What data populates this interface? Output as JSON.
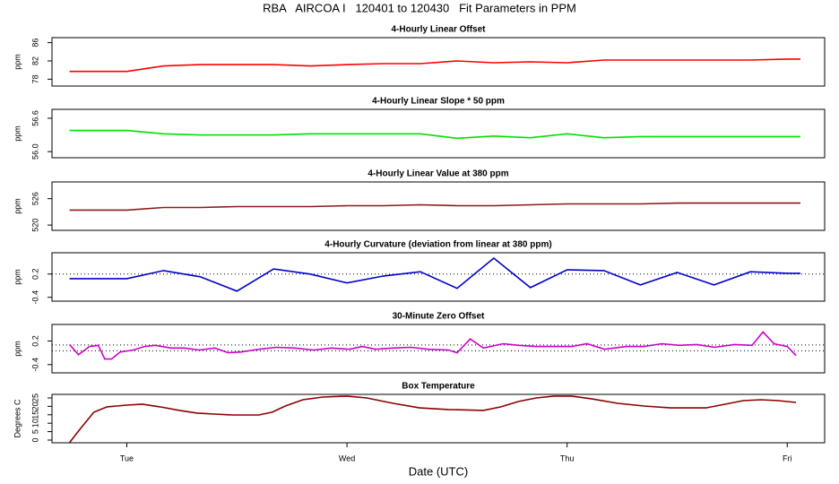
{
  "title": "RBA   AIRCOA I   120401 to 120430   Fit Parameters in PPM",
  "chart_data": [
    {
      "type": "line",
      "title": "4-Hourly Linear Offset",
      "ylabel": "ppm",
      "x": [
        0.74,
        1.0,
        1.167,
        1.333,
        1.5,
        1.667,
        1.833,
        2.0,
        2.167,
        2.333,
        2.5,
        2.667,
        2.833,
        3.0,
        3.167,
        3.333,
        3.5,
        3.667,
        3.833,
        4.0,
        4.06
      ],
      "series": [
        {
          "color": "#ff0000",
          "values": [
            79.7,
            79.7,
            80.9,
            81.2,
            81.2,
            81.2,
            80.9,
            81.2,
            81.4,
            81.4,
            82.0,
            81.6,
            81.8,
            81.6,
            82.2,
            82.2,
            82.2,
            82.2,
            82.2,
            82.4,
            82.4
          ]
        }
      ],
      "xlim": [
        0.66,
        4.17
      ],
      "ylim": [
        76.5,
        87.1
      ],
      "yticks": [
        78,
        82,
        86
      ]
    },
    {
      "type": "line",
      "title": "4-Hourly Linear Slope * 50 ppm",
      "ylabel": "ppm",
      "x": [
        0.74,
        1.0,
        1.167,
        1.333,
        1.5,
        1.667,
        1.833,
        2.0,
        2.167,
        2.333,
        2.5,
        2.667,
        2.833,
        3.0,
        3.167,
        3.333,
        3.5,
        3.667,
        3.833,
        4.0,
        4.06
      ],
      "series": [
        {
          "color": "#00e000",
          "values": [
            56.38,
            56.38,
            56.32,
            56.3,
            56.3,
            56.3,
            56.32,
            56.32,
            56.32,
            56.32,
            56.24,
            56.28,
            56.25,
            56.32,
            56.25,
            56.27,
            56.27,
            56.27,
            56.27,
            56.27,
            56.27
          ]
        }
      ],
      "xlim": [
        0.66,
        4.17
      ],
      "ylim": [
        55.89,
        56.76
      ],
      "yticks": [
        {
          "value": 56,
          "label": "56.0"
        },
        56.6
      ]
    },
    {
      "type": "line",
      "title": "4-Hourly Linear Value at 380 ppm",
      "ylabel": "ppm",
      "x": [
        0.74,
        1.0,
        1.167,
        1.333,
        1.5,
        1.667,
        1.833,
        2.0,
        2.167,
        2.333,
        2.5,
        2.667,
        2.833,
        3.0,
        3.167,
        3.333,
        3.5,
        3.667,
        3.833,
        4.0,
        4.06
      ],
      "series": [
        {
          "color": "#8b1a1a",
          "values": [
            523.4,
            523.4,
            524.0,
            524.0,
            524.2,
            524.2,
            524.2,
            524.4,
            524.4,
            524.6,
            524.4,
            524.4,
            524.6,
            524.8,
            524.8,
            524.8,
            525.0,
            525.0,
            525.0,
            525.0,
            525.0
          ]
        }
      ],
      "xlim": [
        0.66,
        4.17
      ],
      "ylim": [
        518.8,
        529.8
      ],
      "yticks": [
        520,
        526
      ]
    },
    {
      "type": "line",
      "title": "4-Hourly Curvature (deviation from linear at 380 ppm)",
      "ylabel": "ppm",
      "x": [
        0.74,
        1.0,
        1.167,
        1.333,
        1.5,
        1.667,
        1.833,
        2.0,
        2.167,
        2.333,
        2.5,
        2.667,
        2.833,
        3.0,
        3.167,
        3.333,
        3.5,
        3.667,
        3.833,
        4.0,
        4.06
      ],
      "series": [
        {
          "color": "#0000cc",
          "values": [
            0.08,
            0.08,
            0.29,
            0.13,
            -0.24,
            0.33,
            0.2,
            -0.03,
            0.15,
            0.26,
            -0.17,
            0.61,
            -0.15,
            0.31,
            0.29,
            -0.08,
            0.24,
            -0.08,
            0.26,
            0.22,
            0.22
          ]
        }
      ],
      "xlim": [
        0.66,
        4.17
      ],
      "ylim": [
        -0.5,
        0.75
      ],
      "yticks": [
        -0.4,
        0.2
      ],
      "hlines": [
        0.2
      ]
    },
    {
      "type": "line",
      "title": "30-Minute Zero Offset",
      "ylabel": "ppm",
      "x": [
        0.74,
        0.78,
        0.83,
        0.87,
        0.9,
        0.93,
        0.97,
        1.03,
        1.08,
        1.13,
        1.2,
        1.26,
        1.33,
        1.4,
        1.46,
        1.52,
        1.6,
        1.68,
        1.76,
        1.85,
        1.93,
        2.01,
        2.07,
        2.13,
        2.21,
        2.29,
        2.37,
        2.46,
        2.5,
        2.56,
        2.62,
        2.71,
        2.78,
        2.86,
        2.94,
        3.02,
        3.09,
        3.17,
        3.27,
        3.35,
        3.43,
        3.51,
        3.59,
        3.67,
        3.76,
        3.84,
        3.89,
        3.94,
        4.0,
        4.04
      ],
      "series": [
        {
          "color": "#cc00cc",
          "values": [
            0.11,
            -0.15,
            0.06,
            0.09,
            -0.26,
            -0.26,
            -0.08,
            -0.03,
            0.06,
            0.09,
            0.02,
            0.02,
            -0.03,
            0.02,
            -0.1,
            -0.08,
            -0.01,
            0.04,
            0.02,
            -0.03,
            0.02,
            -0.01,
            0.06,
            -0.01,
            0.02,
            0.04,
            -0.01,
            -0.03,
            -0.1,
            0.25,
            0.02,
            0.13,
            0.09,
            0.06,
            0.06,
            0.06,
            0.13,
            -0.01,
            0.06,
            0.06,
            0.13,
            0.09,
            0.11,
            0.04,
            0.11,
            0.09,
            0.43,
            0.13,
            0.06,
            -0.17
          ]
        }
      ],
      "xlim": [
        0.66,
        4.17
      ],
      "ylim": [
        -0.61,
        0.62
      ],
      "yticks": [
        -0.4,
        0.2
      ],
      "hlines": [
        0.1,
        -0.05
      ]
    },
    {
      "type": "line",
      "title": "Box Temperature",
      "ylabel": "Degrees C",
      "xlabel": "Date (UTC)",
      "x": [
        0.74,
        0.79,
        0.85,
        0.91,
        1.0,
        1.07,
        1.15,
        1.24,
        1.32,
        1.4,
        1.48,
        1.6,
        1.66,
        1.72,
        1.8,
        1.89,
        2.0,
        2.09,
        2.21,
        2.33,
        2.46,
        2.62,
        2.7,
        2.78,
        2.86,
        2.94,
        3.02,
        3.11,
        3.23,
        3.35,
        3.47,
        3.63,
        3.72,
        3.8,
        3.88,
        3.96,
        4.04
      ],
      "series": [
        {
          "color": "#8b0000",
          "values": [
            -1.5,
            6.9,
            16.5,
            19.7,
            20.7,
            21.3,
            19.7,
            17.6,
            16.0,
            15.4,
            14.9,
            14.9,
            16.5,
            20.2,
            23.9,
            25.5,
            26.1,
            25.0,
            21.8,
            19.1,
            18.1,
            17.6,
            19.7,
            22.9,
            25.0,
            26.1,
            26.1,
            24.5,
            21.8,
            20.2,
            19.1,
            19.1,
            21.3,
            23.4,
            23.9,
            23.4,
            22.3
          ]
        }
      ],
      "xlim": [
        0.66,
        4.17
      ],
      "ylim": [
        -1.6,
        27.1
      ],
      "yticks": [
        0,
        5,
        10,
        15,
        20,
        25
      ],
      "xticks": [
        {
          "value": 1,
          "label": "Tue"
        },
        {
          "value": 2,
          "label": "Wed"
        },
        {
          "value": 3,
          "label": "Thu"
        },
        {
          "value": 4,
          "label": "Fri"
        }
      ]
    }
  ]
}
